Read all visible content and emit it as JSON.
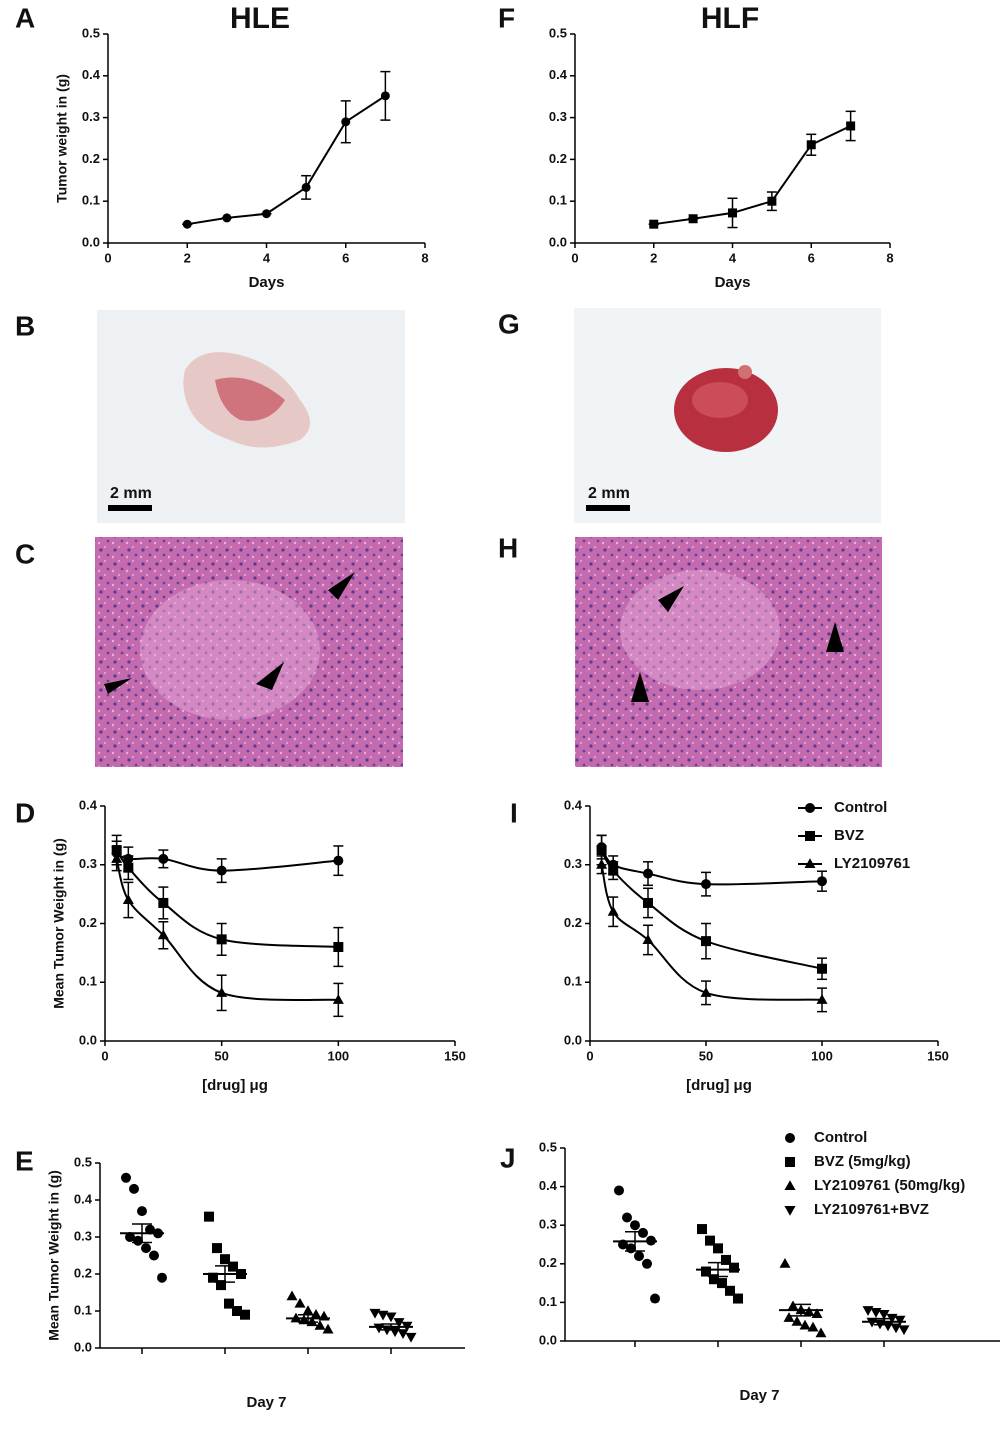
{
  "photos": [
    {
      "panel": "B",
      "scale": "2 mm"
    },
    {
      "panel": "C"
    },
    {
      "panel": "G",
      "scale": "2 mm"
    },
    {
      "panel": "H"
    }
  ],
  "chart_data": [
    {
      "type": "line",
      "panel": "A",
      "title": "HLE",
      "xlabel": "Days",
      "ylabel": "Tumor weight in (g)",
      "x": [
        2,
        3,
        4,
        5,
        6,
        7
      ],
      "series": [
        {
          "marker": "circle",
          "values": [
            0.045,
            0.06,
            0.07,
            0.133,
            0.29,
            0.352
          ],
          "errors": [
            0,
            0,
            0,
            0.028,
            0.05,
            0.058
          ]
        }
      ],
      "xlim": [
        0,
        8
      ],
      "xticks": [
        0,
        2,
        4,
        6,
        8
      ],
      "ylim": [
        0,
        0.5
      ],
      "yticks": [
        {
          "value": 0,
          "label": "0.0"
        },
        0.1,
        0.2,
        0.3,
        0.4,
        0.5
      ]
    },
    {
      "type": "line",
      "panel": "F",
      "title": "HLF",
      "xlabel": "Days",
      "x": [
        2,
        3,
        4,
        5,
        6,
        7
      ],
      "series": [
        {
          "marker": "square",
          "values": [
            0.045,
            0.058,
            0.072,
            0.1,
            0.235,
            0.28
          ],
          "errors": [
            0,
            0,
            0.035,
            0.022,
            0.025,
            0.035
          ]
        }
      ],
      "xlim": [
        0,
        8
      ],
      "xticks": [
        0,
        2,
        4,
        6,
        8
      ],
      "ylim": [
        0,
        0.5
      ],
      "yticks": [
        {
          "value": 0,
          "label": "0.0"
        },
        0.1,
        0.2,
        0.3,
        0.4,
        0.5
      ]
    },
    {
      "type": "curve",
      "panel": "D",
      "xlabel": "[drug] μg",
      "ylabel": "Mean Tumor Weight in (g)",
      "x": [
        5,
        10,
        25,
        50,
        100
      ],
      "series": [
        {
          "name": "Control",
          "marker": "circle",
          "values": [
            0.32,
            0.31,
            0.31,
            0.29,
            0.307
          ],
          "errors": [
            0.02,
            0.02,
            0.015,
            0.02,
            0.025
          ]
        },
        {
          "name": "BVZ",
          "marker": "square",
          "values": [
            0.325,
            0.295,
            0.235,
            0.173,
            0.16
          ],
          "errors": [
            0.025,
            0.02,
            0.027,
            0.027,
            0.033
          ]
        },
        {
          "name": "LY2109761",
          "marker": "triangle",
          "values": [
            0.31,
            0.24,
            0.18,
            0.082,
            0.07
          ],
          "errors": [
            0.02,
            0.03,
            0.023,
            0.03,
            0.028
          ]
        }
      ],
      "xlim": [
        0,
        150
      ],
      "xticks": [
        0,
        50,
        100,
        150
      ],
      "ylim": [
        0,
        0.4
      ],
      "yticks": [
        {
          "value": 0,
          "label": "0.0"
        },
        0.1,
        0.2,
        0.3,
        0.4
      ]
    },
    {
      "type": "curve",
      "panel": "I",
      "xlabel": "[drug] μg",
      "legend": "upper right",
      "x": [
        5,
        10,
        25,
        50,
        100
      ],
      "series": [
        {
          "name": "Control",
          "marker": "circle",
          "values": [
            0.33,
            0.3,
            0.285,
            0.267,
            0.272
          ],
          "errors": [
            0.02,
            0.015,
            0.02,
            0.02,
            0.017
          ]
        },
        {
          "name": "BVZ",
          "marker": "square",
          "values": [
            0.325,
            0.29,
            0.235,
            0.17,
            0.123
          ],
          "errors": [
            0.025,
            0.015,
            0.025,
            0.03,
            0.018
          ]
        },
        {
          "name": "LY2109761",
          "marker": "triangle",
          "values": [
            0.3,
            0.22,
            0.172,
            0.082,
            0.07
          ],
          "errors": [
            0.015,
            0.025,
            0.025,
            0.02,
            0.02
          ]
        }
      ],
      "xlim": [
        0,
        150
      ],
      "xticks": [
        0,
        50,
        100,
        150
      ],
      "ylim": [
        0,
        0.4
      ],
      "yticks": [
        {
          "value": 0,
          "label": "0.0"
        },
        0.1,
        0.2,
        0.3,
        0.4
      ]
    },
    {
      "type": "strip",
      "panel": "E",
      "xlabel": "Day 7",
      "ylabel": "Mean Tumor Weight in (g)",
      "categories": [
        null,
        null,
        null,
        null
      ],
      "series": [
        {
          "marker": "circle",
          "values": [
            0.46,
            0.43,
            0.37,
            0.32,
            0.31,
            0.3,
            0.29,
            0.27,
            0.25,
            0.19
          ],
          "mean": 0.31,
          "sem": 0.025
        },
        {
          "marker": "square",
          "values": [
            0.355,
            0.27,
            0.24,
            0.22,
            0.2,
            0.19,
            0.17,
            0.12,
            0.1,
            0.09
          ],
          "mean": 0.2,
          "sem": 0.022
        },
        {
          "marker": "triangle",
          "values": [
            0.14,
            0.12,
            0.1,
            0.09,
            0.085,
            0.08,
            0.075,
            0.07,
            0.06,
            0.05
          ],
          "mean": 0.08,
          "sem": 0.01
        },
        {
          "marker": "triangle-down",
          "values": [
            0.095,
            0.09,
            0.085,
            0.07,
            0.06,
            0.055,
            0.05,
            0.045,
            0.04,
            0.03
          ],
          "mean": 0.057,
          "sem": 0.008
        }
      ],
      "ylim": [
        0,
        0.5
      ],
      "yticks": [
        {
          "value": 0,
          "label": "0.0"
        },
        0.1,
        0.2,
        0.3,
        0.4,
        0.5
      ]
    },
    {
      "type": "strip",
      "panel": "J",
      "xlabel": "Day 7",
      "legend": "upper right",
      "categories": [
        null,
        null,
        null,
        null
      ],
      "series": [
        {
          "name": "Control",
          "marker": "circle",
          "values": [
            0.39,
            0.32,
            0.3,
            0.28,
            0.26,
            0.25,
            0.24,
            0.22,
            0.2,
            0.11
          ],
          "mean": 0.258,
          "sem": 0.025
        },
        {
          "name": "BVZ (5mg/kg)",
          "marker": "square",
          "values": [
            0.29,
            0.26,
            0.24,
            0.21,
            0.19,
            0.18,
            0.16,
            0.15,
            0.13,
            0.11
          ],
          "mean": 0.185,
          "sem": 0.018
        },
        {
          "name": "LY2109761 (50mg/kg)",
          "marker": "triangle",
          "values": [
            0.2,
            0.09,
            0.08,
            0.075,
            0.07,
            0.06,
            0.05,
            0.04,
            0.035,
            0.02
          ],
          "mean": 0.08,
          "sem": 0.015
        },
        {
          "name": "LY2109761+BVZ",
          "marker": "triangle-down",
          "values": [
            0.08,
            0.075,
            0.07,
            0.06,
            0.055,
            0.05,
            0.045,
            0.04,
            0.035,
            0.03
          ],
          "mean": 0.05,
          "sem": 0.008
        }
      ],
      "ylim": [
        0,
        0.5
      ],
      "yticks": [
        {
          "value": 0,
          "label": "0.0"
        },
        0.1,
        0.2,
        0.3,
        0.4,
        0.5
      ]
    }
  ]
}
